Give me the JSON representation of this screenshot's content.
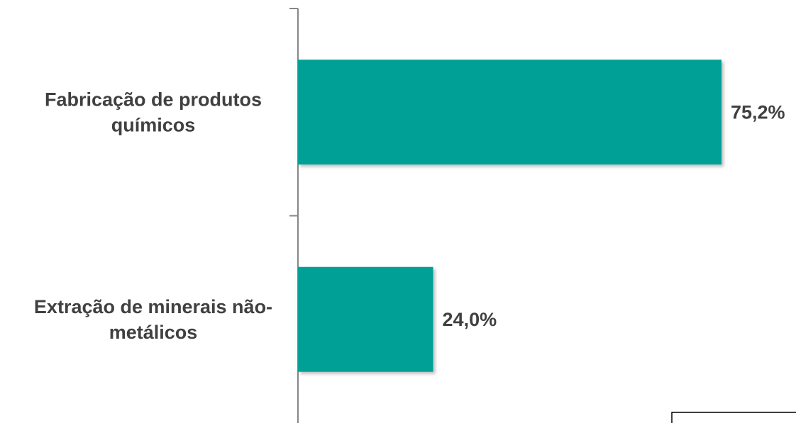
{
  "chart_data": {
    "type": "bar",
    "orientation": "horizontal",
    "categories": [
      [
        "Fabricação de produtos",
        "químicos"
      ],
      [
        "Extração de minerais não-",
        "metálicos"
      ]
    ],
    "values": [
      75.2,
      24.0
    ],
    "value_labels": [
      "75,2%",
      "24,0%"
    ],
    "xlim": [
      0,
      76
    ],
    "bar_color": "#00A096",
    "grid": false,
    "legend": "none"
  }
}
